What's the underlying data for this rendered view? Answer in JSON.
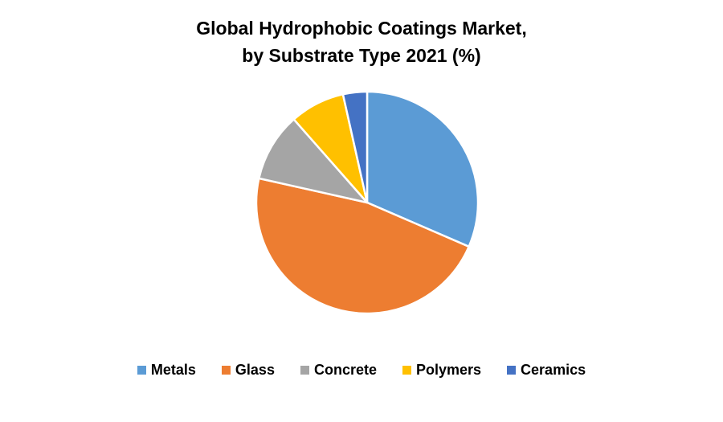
{
  "chart_data": {
    "type": "pie",
    "title": [
      "Global Hydrophobic Coatings Market,",
      "by Substrate Type 2021 (%)"
    ],
    "categories": [
      "Metals",
      "Glass",
      "Concrete",
      "Polymers",
      "Ceramics"
    ],
    "values": [
      31.5,
      47.0,
      10.0,
      8.0,
      3.5
    ],
    "colors": [
      "#5B9BD5",
      "#ED7D31",
      "#A5A5A5",
      "#FFC000",
      "#4472C4"
    ],
    "start_angle": "12 o'clock",
    "direction": "clockwise",
    "legend_position": "bottom"
  }
}
